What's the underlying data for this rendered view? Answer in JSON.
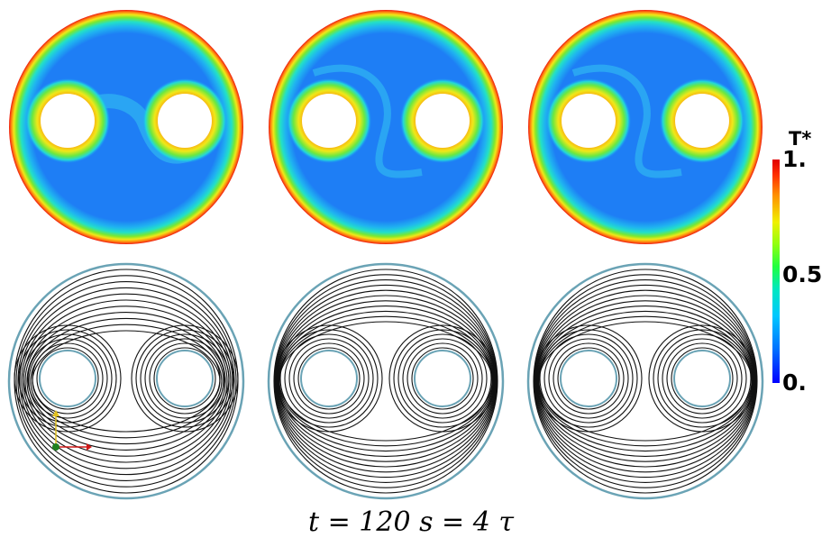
{
  "colorbar": {
    "title": "T*",
    "max_label": "1.",
    "mid_label": "0.5",
    "min_label": "0.",
    "colors": [
      "#0000ff",
      "#00a0ff",
      "#00e8d8",
      "#20ff60",
      "#a0ff10",
      "#f0f000",
      "#ff9000",
      "#ff2000",
      "#e00000"
    ]
  },
  "panels": {
    "temperature": [
      {
        "name": "temperature-panel-1"
      },
      {
        "name": "temperature-panel-2"
      },
      {
        "name": "temperature-panel-3"
      }
    ],
    "streamlines": [
      {
        "name": "streamline-panel-1"
      },
      {
        "name": "streamline-panel-2"
      },
      {
        "name": "streamline-panel-3"
      }
    ]
  },
  "colors": {
    "wall": "#6aa3b5",
    "streamline": "#111111",
    "fluid_blue": "#1e7ef5",
    "axis_red": "#d01818",
    "axis_yellow": "#e0c020",
    "axis_green": "#208020"
  },
  "caption": "t = 120 s = 4 τ"
}
